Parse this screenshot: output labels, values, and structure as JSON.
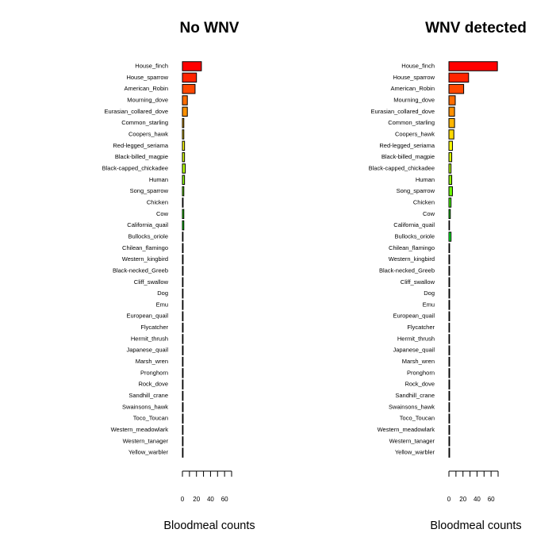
{
  "chart_data": [
    {
      "type": "bar",
      "orientation": "horizontal",
      "title": "No WNV",
      "xlabel": "Bloodmeal counts",
      "ylabel": "",
      "xlim": [
        0,
        70
      ],
      "xticks": [
        0,
        20,
        40,
        60
      ],
      "categories": [
        "House_finch",
        "House_sparrow",
        "American_Robin",
        "Mourning_dove",
        "Eurasian_collared_dove",
        "Common_starling",
        "Coopers_hawk",
        "Red-legged_seriama",
        "Black-billed_magpie",
        "Black-capped_chickadee",
        "Human",
        "Song_sparrow",
        "Chicken",
        "Cow",
        "California_quail",
        "Bullocks_oriole",
        "Chilean_flamingo",
        "Western_kingbird",
        "Black-necked_Greeb",
        "Cliff_swallow",
        "Dog",
        "Emu",
        "European_quail",
        "Flycatcher",
        "Hermit_thrush",
        "Japanese_quail",
        "Marsh_wren",
        "Pronghorn",
        "Rock_dove",
        "Sandhill_crane",
        "Swainsons_hawk",
        "Toco_Toucan",
        "Western_meadowlark",
        "Western_tanager",
        "Yellow_warbler"
      ],
      "values": [
        27,
        20,
        18,
        7,
        7,
        2,
        2,
        3,
        3,
        4,
        3,
        2,
        1,
        2,
        2,
        0,
        1,
        1,
        1,
        0,
        0,
        0,
        0,
        1,
        0,
        1,
        0,
        1,
        0,
        0,
        1,
        1,
        0,
        0,
        0
      ],
      "colors": [
        "#ff0000",
        "#ff2400",
        "#ff4800",
        "#ff6d00",
        "#ff9100",
        "#ffb600",
        "#ffda00",
        "#ffff00",
        "#daff00",
        "#b6ff00",
        "#91ff00",
        "#6dff00",
        "#48ff00",
        "#24ff00",
        "#00ff00",
        "#00ff24",
        "#00ff48",
        "#00ff6d",
        "#00ff91",
        "#00ffb6",
        "#00ffda",
        "#00ffff",
        "#00daff",
        "#00b6ff",
        "#0091ff",
        "#006dff",
        "#0048ff",
        "#0024ff",
        "#0000ff",
        "#2400ff",
        "#4800ff",
        "#6d00ff",
        "#9100ff",
        "#b600ff",
        "#da00ff"
      ],
      "grid": false
    },
    {
      "type": "bar",
      "orientation": "horizontal",
      "title": "WNV detected",
      "xlabel": "Bloodmeal counts",
      "ylabel": "",
      "xlim": [
        0,
        70
      ],
      "xticks": [
        0,
        20,
        40,
        60
      ],
      "categories": [
        "House_finch",
        "House_sparrow",
        "American_Robin",
        "Mourning_dove",
        "Eurasian_collared_dove",
        "Common_starling",
        "Coopers_hawk",
        "Red-legged_seriama",
        "Black-billed_magpie",
        "Black-capped_chickadee",
        "Human",
        "Song_sparrow",
        "Chicken",
        "Cow",
        "California_quail",
        "Bullocks_oriole",
        "Chilean_flamingo",
        "Western_kingbird",
        "Black-necked_Greeb",
        "Cliff_swallow",
        "Dog",
        "Emu",
        "European_quail",
        "Flycatcher",
        "Hermit_thrush",
        "Japanese_quail",
        "Marsh_wren",
        "Pronghorn",
        "Rock_dove",
        "Sandhill_crane",
        "Swainsons_hawk",
        "Toco_Toucan",
        "Western_meadowlark",
        "Western_tanager",
        "Yellow_warbler"
      ],
      "values": [
        69,
        28,
        21,
        9,
        8,
        8,
        7,
        5,
        4,
        3,
        4,
        5,
        3,
        2,
        0,
        3,
        1,
        1,
        1,
        1,
        1,
        1,
        1,
        0,
        0,
        1,
        1,
        1,
        1,
        1,
        0,
        1,
        1,
        1,
        1
      ],
      "colors": [
        "#ff0000",
        "#ff2400",
        "#ff4800",
        "#ff6d00",
        "#ff9100",
        "#ffb600",
        "#ffda00",
        "#ffff00",
        "#daff00",
        "#b6ff00",
        "#91ff00",
        "#6dff00",
        "#48ff00",
        "#24ff00",
        "#00ff00",
        "#00ff24",
        "#00ff48",
        "#00ff6d",
        "#00ff91",
        "#00ffb6",
        "#00ffda",
        "#00ffff",
        "#00daff",
        "#00b6ff",
        "#0091ff",
        "#006dff",
        "#0048ff",
        "#0024ff",
        "#0000ff",
        "#2400ff",
        "#4800ff",
        "#6d00ff",
        "#9100ff",
        "#b600ff",
        "#da00ff"
      ],
      "grid": false
    }
  ]
}
